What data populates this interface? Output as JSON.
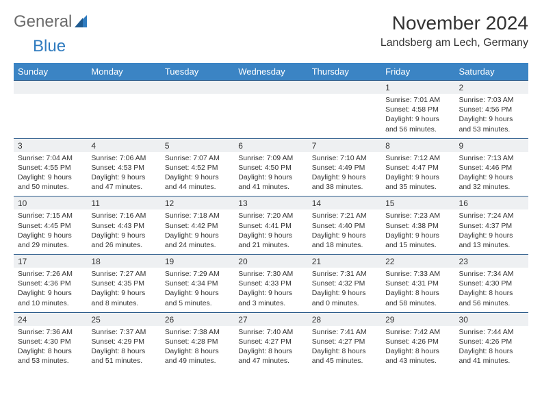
{
  "logo": {
    "text1": "General",
    "text2": "Blue"
  },
  "title": "November 2024",
  "location": "Landsberg am Lech, Germany",
  "colors": {
    "header_bg": "#3b84c4",
    "header_text": "#ffffff",
    "date_row_bg": "#eef0f2",
    "date_row_border": "#2a5a8a",
    "text": "#333333",
    "logo_gray": "#6b6b6b",
    "logo_blue": "#2f7bbf",
    "background": "#ffffff"
  },
  "typography": {
    "title_fontsize": 28,
    "location_fontsize": 16,
    "header_fontsize": 13,
    "date_fontsize": 12,
    "detail_fontsize": 10.5
  },
  "dayHeaders": [
    "Sunday",
    "Monday",
    "Tuesday",
    "Wednesday",
    "Thursday",
    "Friday",
    "Saturday"
  ],
  "weeks": [
    [
      {
        "date": "",
        "sunrise": "",
        "sunset": "",
        "daylight": ""
      },
      {
        "date": "",
        "sunrise": "",
        "sunset": "",
        "daylight": ""
      },
      {
        "date": "",
        "sunrise": "",
        "sunset": "",
        "daylight": ""
      },
      {
        "date": "",
        "sunrise": "",
        "sunset": "",
        "daylight": ""
      },
      {
        "date": "",
        "sunrise": "",
        "sunset": "",
        "daylight": ""
      },
      {
        "date": "1",
        "sunrise": "Sunrise: 7:01 AM",
        "sunset": "Sunset: 4:58 PM",
        "daylight": "Daylight: 9 hours and 56 minutes."
      },
      {
        "date": "2",
        "sunrise": "Sunrise: 7:03 AM",
        "sunset": "Sunset: 4:56 PM",
        "daylight": "Daylight: 9 hours and 53 minutes."
      }
    ],
    [
      {
        "date": "3",
        "sunrise": "Sunrise: 7:04 AM",
        "sunset": "Sunset: 4:55 PM",
        "daylight": "Daylight: 9 hours and 50 minutes."
      },
      {
        "date": "4",
        "sunrise": "Sunrise: 7:06 AM",
        "sunset": "Sunset: 4:53 PM",
        "daylight": "Daylight: 9 hours and 47 minutes."
      },
      {
        "date": "5",
        "sunrise": "Sunrise: 7:07 AM",
        "sunset": "Sunset: 4:52 PM",
        "daylight": "Daylight: 9 hours and 44 minutes."
      },
      {
        "date": "6",
        "sunrise": "Sunrise: 7:09 AM",
        "sunset": "Sunset: 4:50 PM",
        "daylight": "Daylight: 9 hours and 41 minutes."
      },
      {
        "date": "7",
        "sunrise": "Sunrise: 7:10 AM",
        "sunset": "Sunset: 4:49 PM",
        "daylight": "Daylight: 9 hours and 38 minutes."
      },
      {
        "date": "8",
        "sunrise": "Sunrise: 7:12 AM",
        "sunset": "Sunset: 4:47 PM",
        "daylight": "Daylight: 9 hours and 35 minutes."
      },
      {
        "date": "9",
        "sunrise": "Sunrise: 7:13 AM",
        "sunset": "Sunset: 4:46 PM",
        "daylight": "Daylight: 9 hours and 32 minutes."
      }
    ],
    [
      {
        "date": "10",
        "sunrise": "Sunrise: 7:15 AM",
        "sunset": "Sunset: 4:45 PM",
        "daylight": "Daylight: 9 hours and 29 minutes."
      },
      {
        "date": "11",
        "sunrise": "Sunrise: 7:16 AM",
        "sunset": "Sunset: 4:43 PM",
        "daylight": "Daylight: 9 hours and 26 minutes."
      },
      {
        "date": "12",
        "sunrise": "Sunrise: 7:18 AM",
        "sunset": "Sunset: 4:42 PM",
        "daylight": "Daylight: 9 hours and 24 minutes."
      },
      {
        "date": "13",
        "sunrise": "Sunrise: 7:20 AM",
        "sunset": "Sunset: 4:41 PM",
        "daylight": "Daylight: 9 hours and 21 minutes."
      },
      {
        "date": "14",
        "sunrise": "Sunrise: 7:21 AM",
        "sunset": "Sunset: 4:40 PM",
        "daylight": "Daylight: 9 hours and 18 minutes."
      },
      {
        "date": "15",
        "sunrise": "Sunrise: 7:23 AM",
        "sunset": "Sunset: 4:38 PM",
        "daylight": "Daylight: 9 hours and 15 minutes."
      },
      {
        "date": "16",
        "sunrise": "Sunrise: 7:24 AM",
        "sunset": "Sunset: 4:37 PM",
        "daylight": "Daylight: 9 hours and 13 minutes."
      }
    ],
    [
      {
        "date": "17",
        "sunrise": "Sunrise: 7:26 AM",
        "sunset": "Sunset: 4:36 PM",
        "daylight": "Daylight: 9 hours and 10 minutes."
      },
      {
        "date": "18",
        "sunrise": "Sunrise: 7:27 AM",
        "sunset": "Sunset: 4:35 PM",
        "daylight": "Daylight: 9 hours and 8 minutes."
      },
      {
        "date": "19",
        "sunrise": "Sunrise: 7:29 AM",
        "sunset": "Sunset: 4:34 PM",
        "daylight": "Daylight: 9 hours and 5 minutes."
      },
      {
        "date": "20",
        "sunrise": "Sunrise: 7:30 AM",
        "sunset": "Sunset: 4:33 PM",
        "daylight": "Daylight: 9 hours and 3 minutes."
      },
      {
        "date": "21",
        "sunrise": "Sunrise: 7:31 AM",
        "sunset": "Sunset: 4:32 PM",
        "daylight": "Daylight: 9 hours and 0 minutes."
      },
      {
        "date": "22",
        "sunrise": "Sunrise: 7:33 AM",
        "sunset": "Sunset: 4:31 PM",
        "daylight": "Daylight: 8 hours and 58 minutes."
      },
      {
        "date": "23",
        "sunrise": "Sunrise: 7:34 AM",
        "sunset": "Sunset: 4:30 PM",
        "daylight": "Daylight: 8 hours and 56 minutes."
      }
    ],
    [
      {
        "date": "24",
        "sunrise": "Sunrise: 7:36 AM",
        "sunset": "Sunset: 4:30 PM",
        "daylight": "Daylight: 8 hours and 53 minutes."
      },
      {
        "date": "25",
        "sunrise": "Sunrise: 7:37 AM",
        "sunset": "Sunset: 4:29 PM",
        "daylight": "Daylight: 8 hours and 51 minutes."
      },
      {
        "date": "26",
        "sunrise": "Sunrise: 7:38 AM",
        "sunset": "Sunset: 4:28 PM",
        "daylight": "Daylight: 8 hours and 49 minutes."
      },
      {
        "date": "27",
        "sunrise": "Sunrise: 7:40 AM",
        "sunset": "Sunset: 4:27 PM",
        "daylight": "Daylight: 8 hours and 47 minutes."
      },
      {
        "date": "28",
        "sunrise": "Sunrise: 7:41 AM",
        "sunset": "Sunset: 4:27 PM",
        "daylight": "Daylight: 8 hours and 45 minutes."
      },
      {
        "date": "29",
        "sunrise": "Sunrise: 7:42 AM",
        "sunset": "Sunset: 4:26 PM",
        "daylight": "Daylight: 8 hours and 43 minutes."
      },
      {
        "date": "30",
        "sunrise": "Sunrise: 7:44 AM",
        "sunset": "Sunset: 4:26 PM",
        "daylight": "Daylight: 8 hours and 41 minutes."
      }
    ]
  ]
}
